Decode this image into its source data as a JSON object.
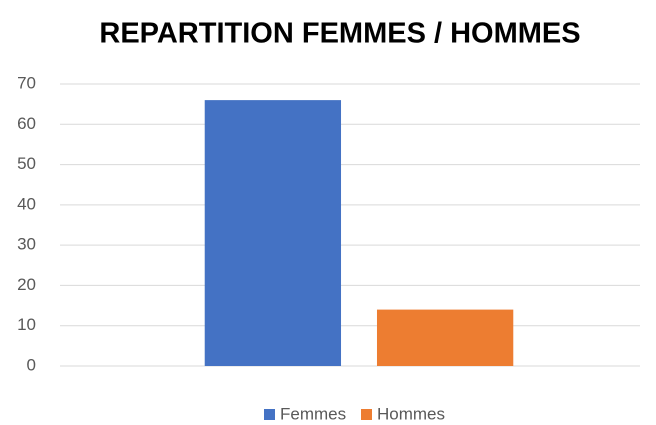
{
  "chart_data": {
    "type": "bar",
    "title": "REPARTITION FEMMES / HOMMES",
    "categories": [
      null
    ],
    "series": [
      {
        "name": "Femmes",
        "color": "#4472c4",
        "values": [
          66
        ]
      },
      {
        "name": "Hommes",
        "color": "#ed7d31",
        "values": [
          14
        ]
      }
    ],
    "ylim": [
      0,
      70
    ],
    "yticks": [
      0,
      10,
      20,
      30,
      40,
      50,
      60,
      70
    ],
    "grid": true,
    "legend": "bottom"
  }
}
